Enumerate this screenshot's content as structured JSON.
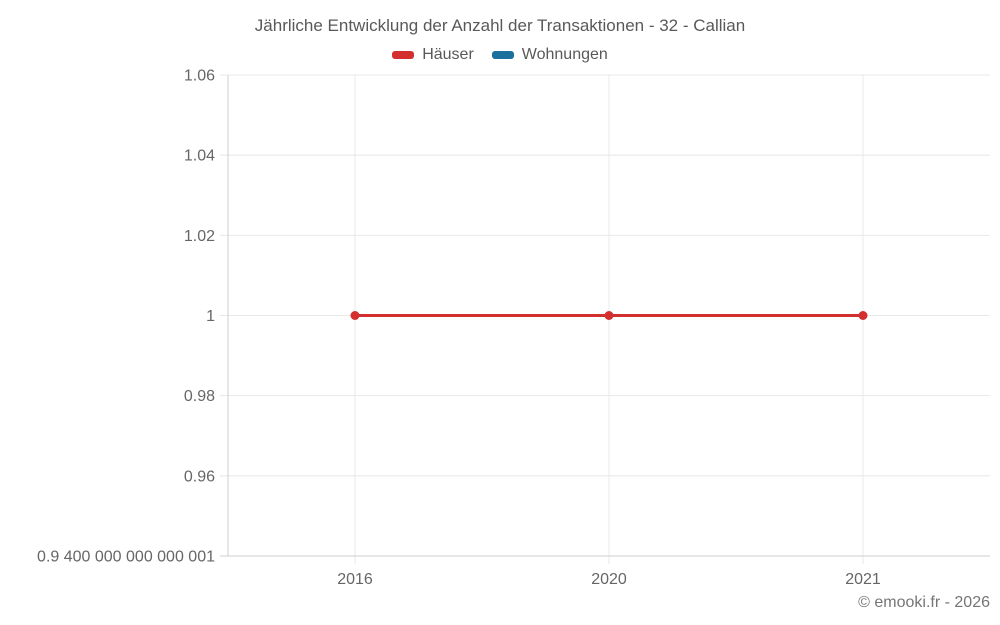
{
  "chart": {
    "title": "Jährliche Entwicklung der Anzahl der Transaktionen - 32 - Callian",
    "footer": "© emooki.fr - 2026"
  },
  "chart_data": {
    "type": "line",
    "title": "Jährliche Entwicklung der Anzahl der Transaktionen - 32 - Callian",
    "categories": [
      "2016",
      "2020",
      "2021"
    ],
    "series": [
      {
        "name": "Häuser",
        "color": "#d32f2f",
        "values": [
          1,
          1,
          1
        ]
      },
      {
        "name": "Wohnungen",
        "color": "#1a6f9c",
        "values": []
      }
    ],
    "y_ticks": [
      {
        "value": 1.06,
        "label": "1.06"
      },
      {
        "value": 1.04,
        "label": "1.04"
      },
      {
        "value": 1.02,
        "label": "1.02"
      },
      {
        "value": 1.0,
        "label": "1"
      },
      {
        "value": 0.98,
        "label": "0.98"
      },
      {
        "value": 0.96,
        "label": "0.96"
      },
      {
        "value": 0.94,
        "label": "0.9 400 000 000 000 001"
      }
    ],
    "ylim": [
      0.94,
      1.06
    ],
    "xlabel": "",
    "ylabel": "",
    "grid": true,
    "legend_position": "top",
    "annotation": "© emooki.fr - 2026"
  }
}
